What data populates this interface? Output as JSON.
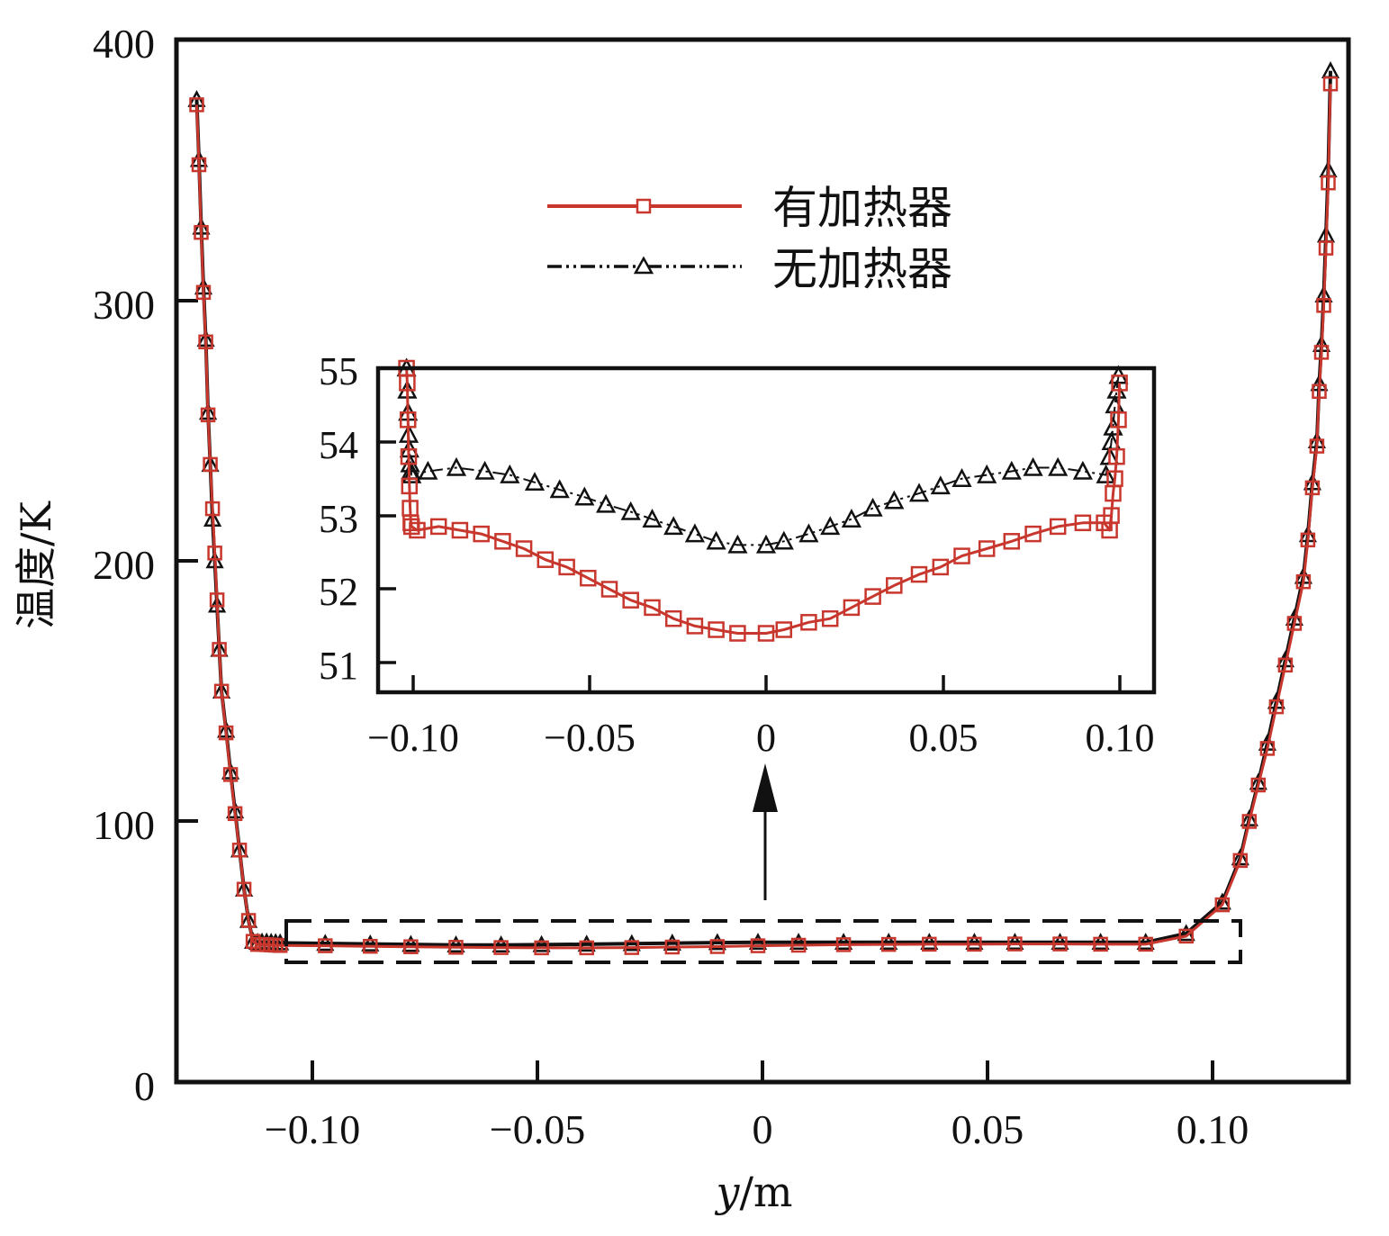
{
  "chart_data": [
    {
      "type": "line",
      "xlabel_italic": "y",
      "xlabel_rest": "/m",
      "ylabel": "温度/K",
      "xlim": [
        -0.13,
        0.13
      ],
      "ylim": [
        0,
        400
      ],
      "x_ticks": [
        -0.1,
        -0.05,
        0,
        0.05,
        0.1
      ],
      "x_tick_labels": [
        "−0.10",
        "−0.05",
        "0",
        "0.05",
        "0.10"
      ],
      "y_ticks": [
        0,
        100,
        200,
        300,
        400
      ],
      "y_tick_labels": [
        "0",
        "100",
        "200",
        "300",
        "400"
      ],
      "legend": {
        "position": "upper-center"
      },
      "colors": {
        "with_heater": "#c8372d",
        "without_heater": "#111111"
      },
      "series": [
        {
          "name": "有加热器",
          "style": "solid-square",
          "x": [
            -0.1255,
            -0.125,
            -0.1245,
            -0.124,
            -0.1235,
            -0.123,
            -0.1225,
            -0.122,
            -0.1215,
            -0.121,
            -0.1205,
            -0.12,
            -0.119,
            -0.118,
            -0.117,
            -0.116,
            -0.115,
            -0.114,
            -0.113,
            -0.112,
            -0.111,
            -0.11,
            -0.109,
            -0.108,
            -0.107,
            -0.097,
            -0.087,
            -0.078,
            -0.068,
            -0.058,
            -0.049,
            -0.039,
            -0.029,
            -0.02,
            -0.01,
            -0.001,
            0.008,
            0.018,
            0.028,
            0.037,
            0.047,
            0.056,
            0.066,
            0.075,
            0.085,
            0.094,
            0.102,
            0.106,
            0.108,
            0.11,
            0.112,
            0.114,
            0.116,
            0.118,
            0.12,
            0.121,
            0.122,
            0.123,
            0.1235,
            0.124,
            0.1245,
            0.125,
            0.1255,
            0.126
          ],
          "y": [
            375,
            352,
            326,
            303,
            284,
            256,
            237,
            220,
            203,
            185,
            166,
            150,
            134,
            118,
            103,
            89,
            74,
            62,
            54,
            52.8,
            52.8,
            52.7,
            52.6,
            52.5,
            52.4,
            52.3,
            52.1,
            51.9,
            51.7,
            51.6,
            51.5,
            51.5,
            51.6,
            51.8,
            52.0,
            52.3,
            52.5,
            52.7,
            52.8,
            52.9,
            52.9,
            53.0,
            53.0,
            52.9,
            52.9,
            56,
            68,
            85,
            100,
            114,
            128,
            144,
            160,
            176,
            192,
            208,
            228,
            244,
            265,
            280,
            298,
            320,
            345,
            383
          ]
        },
        {
          "name": "无加热器",
          "style": "dashdot-triangle",
          "x": [
            -0.1255,
            -0.125,
            -0.1245,
            -0.124,
            -0.1235,
            -0.123,
            -0.1225,
            -0.122,
            -0.1215,
            -0.121,
            -0.1205,
            -0.12,
            -0.119,
            -0.118,
            -0.117,
            -0.116,
            -0.115,
            -0.114,
            -0.113,
            -0.112,
            -0.111,
            -0.11,
            -0.109,
            -0.108,
            -0.107,
            -0.097,
            -0.087,
            -0.078,
            -0.068,
            -0.058,
            -0.049,
            -0.039,
            -0.029,
            -0.02,
            -0.01,
            -0.001,
            0.008,
            0.018,
            0.028,
            0.037,
            0.047,
            0.056,
            0.066,
            0.075,
            0.085,
            0.094,
            0.102,
            0.106,
            0.108,
            0.11,
            0.112,
            0.114,
            0.116,
            0.118,
            0.12,
            0.121,
            0.122,
            0.123,
            0.1235,
            0.124,
            0.1245,
            0.125,
            0.1255,
            0.126
          ],
          "y": [
            377,
            354,
            328,
            305,
            285,
            257,
            237,
            216,
            200,
            183,
            166,
            150,
            135,
            119,
            104,
            89,
            74,
            62,
            54,
            53.6,
            53.7,
            53.7,
            53.6,
            53.5,
            53.4,
            53.2,
            53.0,
            52.8,
            52.6,
            52.6,
            52.7,
            52.9,
            53.1,
            53.3,
            53.5,
            53.6,
            53.6,
            53.6,
            53.6,
            53.6,
            53.6,
            53.6,
            53.6,
            53.6,
            53.6,
            57,
            69,
            86,
            101,
            115,
            130,
            146,
            162,
            178,
            194,
            210,
            230,
            246,
            268,
            283,
            302,
            325,
            350,
            388
          ]
        }
      ]
    },
    {
      "type": "line",
      "role": "inset",
      "xlim": [
        -0.108,
        0.11
      ],
      "ylim": [
        50.6,
        55.0
      ],
      "x_ticks": [
        -0.1,
        -0.05,
        0,
        0.05,
        0.1
      ],
      "x_tick_labels": [
        "−0.10",
        "−0.05",
        "0",
        "0.05",
        "0.10"
      ],
      "y_ticks": [
        51,
        52,
        53,
        54,
        55
      ],
      "y_tick_labels": [
        "51",
        "52",
        "53",
        "54",
        "55"
      ],
      "series": [
        {
          "name": "有加热器",
          "style": "solid-square",
          "x": [
            -0.1,
            -0.0998,
            -0.0996,
            -0.0994,
            -0.0992,
            -0.099,
            -0.0988,
            -0.0986,
            -0.097,
            -0.091,
            -0.085,
            -0.079,
            -0.073,
            -0.067,
            -0.061,
            -0.055,
            -0.049,
            -0.043,
            -0.037,
            -0.031,
            -0.025,
            -0.019,
            -0.013,
            -0.007,
            0.001,
            0.006,
            0.013,
            0.019,
            0.025,
            0.031,
            0.037,
            0.044,
            0.05,
            0.056,
            0.063,
            0.07,
            0.076,
            0.083,
            0.09,
            0.096,
            0.0975,
            0.098,
            0.0985,
            0.099,
            0.0995,
            0.1,
            0.1003
          ],
          "y": [
            55.0,
            54.8,
            54.3,
            53.8,
            53.4,
            53.1,
            52.9,
            52.85,
            52.8,
            52.85,
            52.8,
            52.75,
            52.65,
            52.55,
            52.4,
            52.3,
            52.15,
            52.0,
            51.85,
            51.75,
            51.6,
            51.5,
            51.45,
            51.4,
            51.4,
            51.45,
            51.55,
            51.6,
            51.75,
            51.9,
            52.05,
            52.2,
            52.3,
            52.45,
            52.55,
            52.65,
            52.75,
            52.85,
            52.9,
            52.9,
            52.8,
            53.0,
            53.3,
            53.5,
            53.8,
            54.3,
            54.8
          ]
        },
        {
          "name": "无加热器",
          "style": "dashdot-triangle",
          "x": [
            -0.1,
            -0.0998,
            -0.0996,
            -0.0994,
            -0.0992,
            -0.099,
            -0.0988,
            -0.0986,
            -0.094,
            -0.086,
            -0.078,
            -0.071,
            -0.064,
            -0.057,
            -0.05,
            -0.044,
            -0.037,
            -0.031,
            -0.025,
            -0.019,
            -0.013,
            -0.007,
            0.001,
            0.006,
            0.013,
            0.019,
            0.025,
            0.031,
            0.037,
            0.044,
            0.05,
            0.056,
            0.063,
            0.07,
            0.076,
            0.083,
            0.09,
            0.0965,
            0.0975,
            0.098,
            0.0985,
            0.099,
            0.0995,
            0.1
          ],
          "y": [
            55.0,
            54.7,
            54.4,
            54.1,
            53.9,
            53.7,
            53.6,
            53.55,
            53.6,
            53.65,
            53.6,
            53.55,
            53.45,
            53.35,
            53.25,
            53.15,
            53.05,
            52.95,
            52.85,
            52.75,
            52.65,
            52.6,
            52.6,
            52.65,
            52.75,
            52.85,
            52.95,
            53.1,
            53.2,
            53.3,
            53.4,
            53.5,
            53.55,
            53.6,
            53.65,
            53.65,
            53.6,
            53.55,
            53.8,
            54.0,
            54.2,
            54.5,
            54.7,
            54.9
          ]
        }
      ]
    }
  ]
}
